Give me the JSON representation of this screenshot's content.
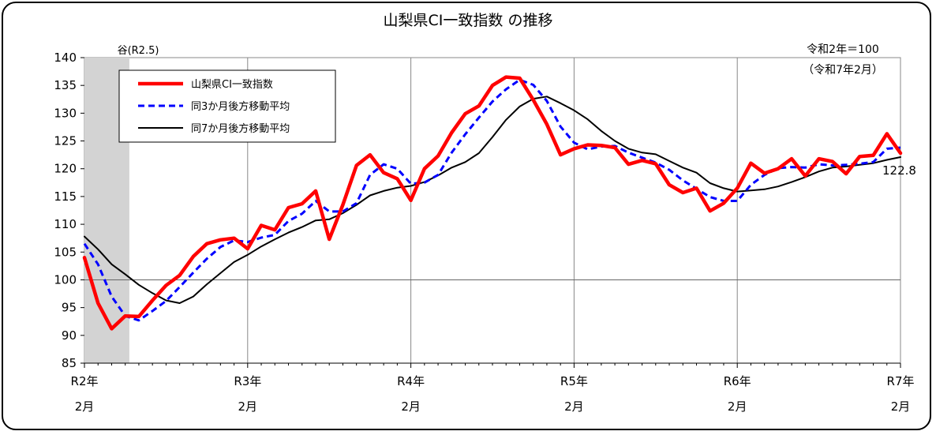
{
  "chart_data": {
    "type": "line",
    "title": "山梨県CI一致指数 の推移",
    "note_lines": [
      "令和2年＝100",
      "（令和7年2月）"
    ],
    "trough_label": "谷(R2.5)",
    "shade_range": [
      0,
      3.3
    ],
    "end_label": "122.8",
    "ylim": [
      85,
      140
    ],
    "yticks": [
      85,
      90,
      95,
      100,
      105,
      110,
      115,
      120,
      125,
      130,
      135,
      140
    ],
    "xlim": [
      0,
      60
    ],
    "xticks": [
      {
        "x": 0,
        "line1": "R2年",
        "line2": "2月"
      },
      {
        "x": 12,
        "line1": "R3年",
        "line2": "2月"
      },
      {
        "x": 24,
        "line1": "R4年",
        "line2": "2月"
      },
      {
        "x": 36,
        "line1": "R5年",
        "line2": "2月"
      },
      {
        "x": 48,
        "line1": "R6年",
        "line2": "2月"
      },
      {
        "x": 60,
        "line1": "R7年",
        "line2": "2月"
      }
    ],
    "legend_position": "top-left",
    "series": [
      {
        "name": "山梨県CI一致指数",
        "color": "#ff0000",
        "style": "solid-thick",
        "values": [
          104.0,
          95.8,
          91.2,
          93.5,
          93.4,
          96.3,
          99.0,
          100.8,
          104.2,
          106.5,
          107.2,
          107.5,
          105.6,
          109.8,
          109.0,
          113.0,
          113.7,
          116.0,
          107.3,
          113.5,
          120.6,
          122.5,
          119.3,
          118.2,
          114.3,
          120.0,
          122.3,
          126.5,
          129.9,
          131.3,
          135.0,
          136.5,
          136.3,
          132.4,
          128.0,
          122.5,
          123.6,
          124.3,
          124.2,
          123.8,
          120.8,
          121.5,
          120.9,
          117.1,
          115.7,
          116.5,
          112.4,
          113.8,
          116.5,
          121.0,
          119.2,
          120.0,
          121.8,
          118.7,
          121.8,
          121.3,
          119.1,
          122.2,
          122.4,
          126.3,
          122.8
        ]
      },
      {
        "name": "同3か月後方移動平均",
        "color": "#0000ff",
        "style": "dashed",
        "values": [
          106.5,
          102.8,
          97.0,
          93.5,
          92.7,
          94.4,
          96.2,
          98.7,
          101.3,
          103.8,
          105.9,
          107.1,
          106.8,
          107.6,
          108.1,
          110.6,
          111.9,
          114.2,
          112.3,
          112.3,
          113.8,
          118.9,
          120.8,
          120.0,
          117.3,
          117.5,
          118.9,
          122.9,
          126.2,
          129.2,
          132.1,
          134.3,
          136.0,
          135.1,
          132.2,
          127.6,
          124.7,
          123.5,
          124.0,
          124.1,
          122.9,
          122.0,
          121.1,
          119.8,
          117.9,
          116.4,
          114.9,
          114.2,
          114.2,
          117.1,
          118.9,
          120.1,
          120.3,
          120.2,
          120.8,
          120.6,
          120.7,
          120.9,
          121.2,
          123.6,
          123.8
        ]
      },
      {
        "name": "同7か月後方移動平均",
        "color": "#000000",
        "style": "solid",
        "values": [
          107.8,
          105.5,
          102.8,
          101.0,
          99.1,
          97.6,
          96.3,
          95.8,
          97.0,
          99.2,
          101.2,
          103.2,
          104.5,
          106.0,
          107.3,
          108.5,
          109.5,
          110.7,
          110.9,
          112.0,
          113.5,
          115.2,
          116.0,
          116.6,
          116.9,
          117.6,
          118.8,
          120.2,
          121.2,
          122.8,
          125.7,
          128.8,
          131.2,
          132.6,
          133.0,
          131.8,
          130.5,
          128.9,
          126.8,
          125.0,
          123.6,
          122.9,
          122.6,
          121.4,
          120.2,
          119.3,
          117.4,
          116.5,
          115.9,
          116.1,
          116.3,
          116.8,
          117.6,
          118.5,
          119.5,
          120.2,
          120.4,
          120.7,
          121.0,
          121.6,
          122.1
        ]
      }
    ]
  }
}
